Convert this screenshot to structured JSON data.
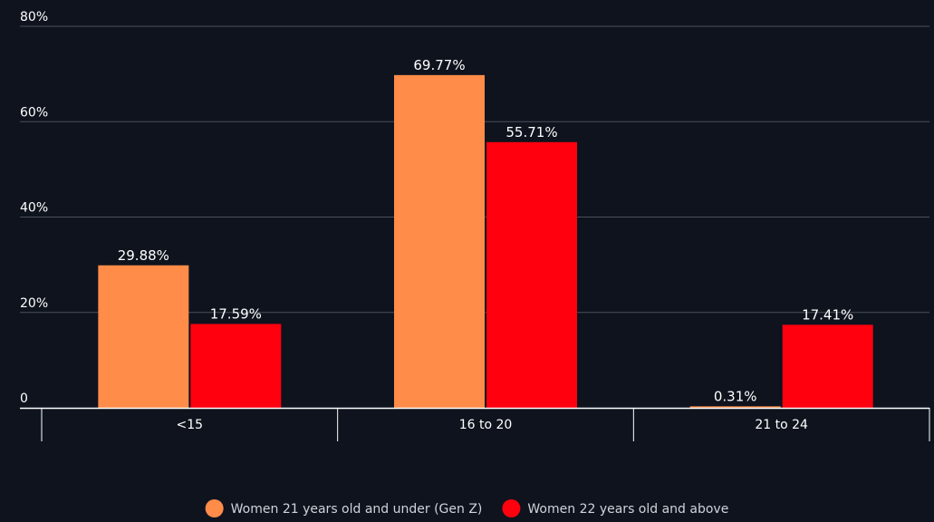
{
  "chart_data": {
    "type": "bar",
    "categories": [
      "<15",
      "16 to 20",
      "21 to 24"
    ],
    "series": [
      {
        "name": "Women 21 years old and under (Gen Z)",
        "values": [
          29.88,
          69.77,
          0.31
        ],
        "labels": [
          "29.88%",
          "69.77%",
          "0.31%"
        ],
        "color": "#ff8c48"
      },
      {
        "name": "Women 22 years old and above",
        "values": [
          17.59,
          55.71,
          17.41
        ],
        "labels": [
          "17.59%",
          "55.71%",
          "17.41%"
        ],
        "color": "#ff000e"
      }
    ],
    "y_ticks": [
      {
        "value": 0,
        "label": "0"
      },
      {
        "value": 20,
        "label": "20%"
      },
      {
        "value": 40,
        "label": "40%"
      },
      {
        "value": 60,
        "label": "60%"
      },
      {
        "value": 80,
        "label": "80%"
      }
    ],
    "ylim": [
      0,
      80
    ],
    "grid": true,
    "legend_position": "bottom-center",
    "title": "",
    "xlabel": "",
    "ylabel": ""
  },
  "colors": {
    "background": "#0e131e",
    "grid": "#4a4f59",
    "axis": "#ffffff",
    "text": "#ffffff",
    "legend_text": "#cfd3da"
  }
}
